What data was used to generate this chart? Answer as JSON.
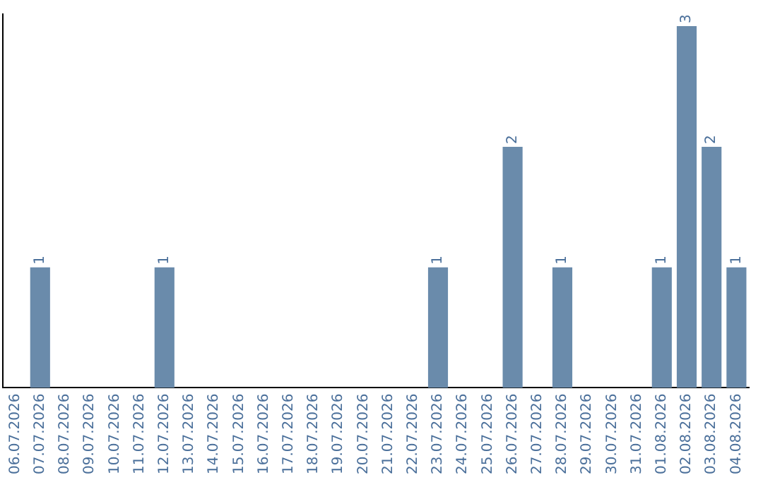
{
  "chart_data": {
    "type": "bar",
    "categories": [
      "06.07.2026",
      "07.07.2026",
      "08.07.2026",
      "09.07.2026",
      "10.07.2026",
      "11.07.2026",
      "12.07.2026",
      "13.07.2026",
      "14.07.2026",
      "15.07.2026",
      "16.07.2026",
      "17.07.2026",
      "18.07.2026",
      "19.07.2026",
      "20.07.2026",
      "21.07.2026",
      "22.07.2026",
      "23.07.2026",
      "24.07.2026",
      "25.07.2026",
      "26.07.2026",
      "27.07.2026",
      "28.07.2026",
      "29.07.2026",
      "30.07.2026",
      "31.07.2026",
      "01.08.2026",
      "02.08.2026",
      "03.08.2026",
      "04.08.2026"
    ],
    "values": [
      0,
      1,
      0,
      0,
      0,
      0,
      1,
      0,
      0,
      0,
      0,
      0,
      0,
      0,
      0,
      0,
      0,
      1,
      0,
      0,
      2,
      0,
      1,
      0,
      0,
      0,
      1,
      3,
      2,
      1
    ],
    "value_labels": [
      null,
      "1",
      null,
      null,
      null,
      null,
      "1",
      null,
      null,
      null,
      null,
      null,
      null,
      null,
      null,
      null,
      null,
      "1",
      null,
      null,
      "2",
      null,
      "1",
      null,
      null,
      null,
      "1",
      "3",
      "2",
      "1"
    ],
    "color": "#6a8bab",
    "ylim": [
      0,
      3.1
    ],
    "tick_labels": "x",
    "grid": false,
    "legend": false
  }
}
